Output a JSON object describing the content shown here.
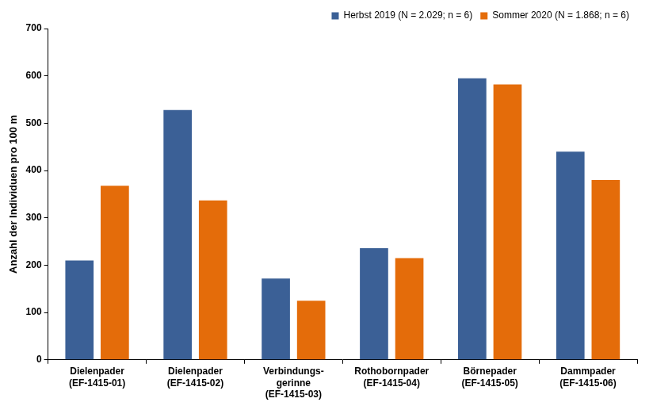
{
  "chart_data": {
    "type": "bar",
    "y_label": "Anzahl der Individuen pro 100 m",
    "categories": [
      [
        "Dielenpader",
        "(EF-1415-01)"
      ],
      [
        "Dielenpader",
        "(EF-1415-02)"
      ],
      [
        "Verbindungs-",
        "gerinne",
        "(EF-1415-03)"
      ],
      [
        "Rothobornpader",
        "(EF-1415-04)"
      ],
      [
        "Börnepader",
        "(EF-1415-05)"
      ],
      [
        "Dammpader",
        "(EF-1415-06)"
      ]
    ],
    "series": [
      {
        "name": "Herbst 2019 (N = 2.029; n = 6)",
        "color": "#3b6096",
        "values": [
          210,
          528,
          172,
          236,
          595,
          440
        ]
      },
      {
        "name": "Sommer 2020 (N = 1.868; n = 6)",
        "color": "#e46c0a",
        "values": [
          368,
          337,
          125,
          215,
          582,
          380
        ]
      }
    ],
    "ylim": [
      0,
      700
    ],
    "yticks": [
      0,
      100,
      200,
      300,
      400,
      500,
      600,
      700
    ],
    "grid": false,
    "legend": "top-right"
  }
}
